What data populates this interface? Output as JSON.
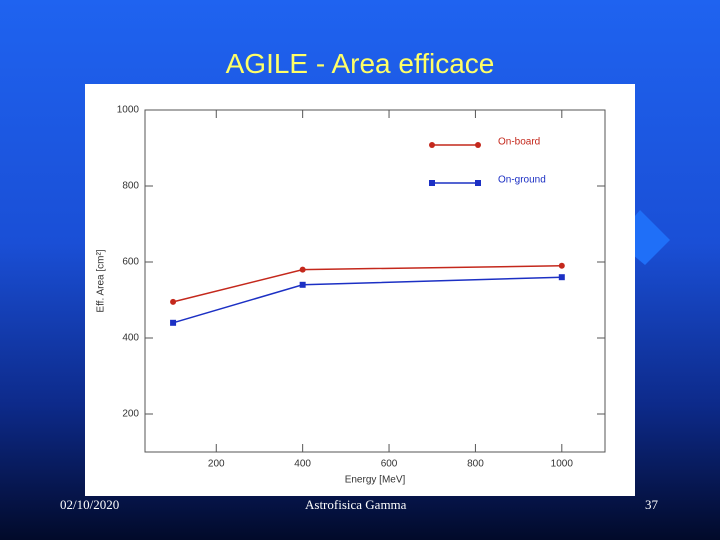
{
  "slide": {
    "title": "AGILE - Area efficace",
    "date": "02/10/2020",
    "footer": "Astrofisica Gamma",
    "page": "37"
  },
  "chart_data": {
    "type": "line",
    "x_label": "Energy [MeV]",
    "y_label": "Eff. Area [cm²]",
    "x": [
      100,
      400,
      1000
    ],
    "series": [
      {
        "name": "On-board",
        "color": "#c4281c",
        "marker": "circle",
        "values": [
          495,
          580,
          590
        ]
      },
      {
        "name": "On-ground",
        "color": "#1c30c4",
        "marker": "square",
        "values": [
          440,
          540,
          560
        ]
      }
    ],
    "xlim": [
      35,
      1100
    ],
    "xticks": [
      200,
      400,
      600,
      800,
      1000
    ],
    "ylim": [
      100,
      1000
    ],
    "yticks": [
      200,
      400,
      600,
      800,
      1000
    ],
    "legend": "upper right"
  }
}
